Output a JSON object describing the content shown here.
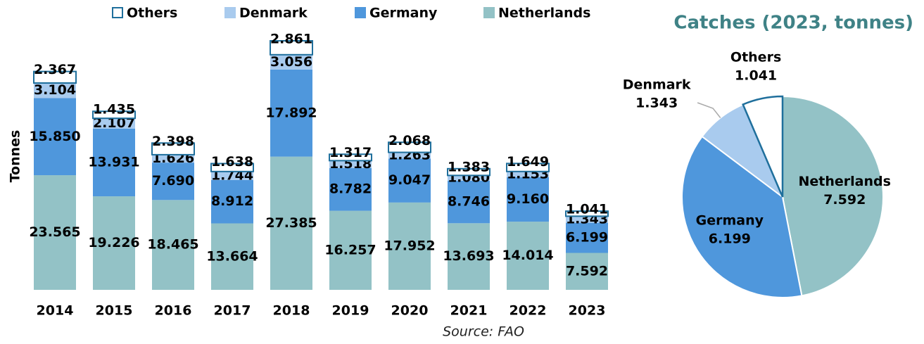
{
  "chart_data": [
    {
      "type": "stacked-bar",
      "y_label": "Tonnes",
      "source": "Source: FAO",
      "categories": [
        "2014",
        "2015",
        "2016",
        "2017",
        "2018",
        "2019",
        "2020",
        "2021",
        "2022",
        "2023"
      ],
      "series": [
        {
          "name": "Netherlands",
          "color": "#93c2c6",
          "values": [
            23565,
            19226,
            18465,
            13664,
            27385,
            16257,
            17952,
            13693,
            14014,
            7592
          ],
          "value_labels": [
            "23.565",
            "19.226",
            "18.465",
            "13.664",
            "27.385",
            "16.257",
            "17.952",
            "13.693",
            "14.014",
            "7.592"
          ]
        },
        {
          "name": "Germany",
          "color": "#4f97dc",
          "values": [
            15850,
            13931,
            7690,
            8912,
            17892,
            8782,
            9047,
            8746,
            9160,
            6199
          ],
          "value_labels": [
            "15.850",
            "13.931",
            "7.690",
            "8.912",
            "17.892",
            "8.782",
            "9.047",
            "8.746",
            "9.160",
            "6.199"
          ]
        },
        {
          "name": "Denmark",
          "color": "#a9cbee",
          "values": [
            3104,
            2107,
            1626,
            1744,
            3056,
            1518,
            1263,
            1080,
            1153,
            1343
          ],
          "value_labels": [
            "3.104",
            "2.107",
            "1.626",
            "1.744",
            "3.056",
            "1.518",
            "1.263",
            "1.080",
            "1.153",
            "1.343"
          ]
        },
        {
          "name": "Others",
          "color": "#ffffff",
          "values": [
            2367,
            1435,
            2398,
            1638,
            2861,
            1317,
            2068,
            1383,
            1649,
            1041
          ],
          "value_labels": [
            "2.367",
            "1.435",
            "2.398",
            "1.638",
            "2.861",
            "1.317",
            "2.068",
            "1.383",
            "1.649",
            "1.041"
          ]
        }
      ]
    },
    {
      "type": "pie",
      "title": "Catches (2023, tonnes)",
      "categories": [
        "Netherlands",
        "Germany",
        "Denmark",
        "Others"
      ],
      "values": [
        7592,
        6199,
        1343,
        1041
      ],
      "value_labels": [
        "7.592",
        "6.199",
        "1.343",
        "1.041"
      ],
      "colors": [
        "#93c2c6",
        "#4f97dc",
        "#a9cbee",
        "#ffffff"
      ]
    }
  ]
}
